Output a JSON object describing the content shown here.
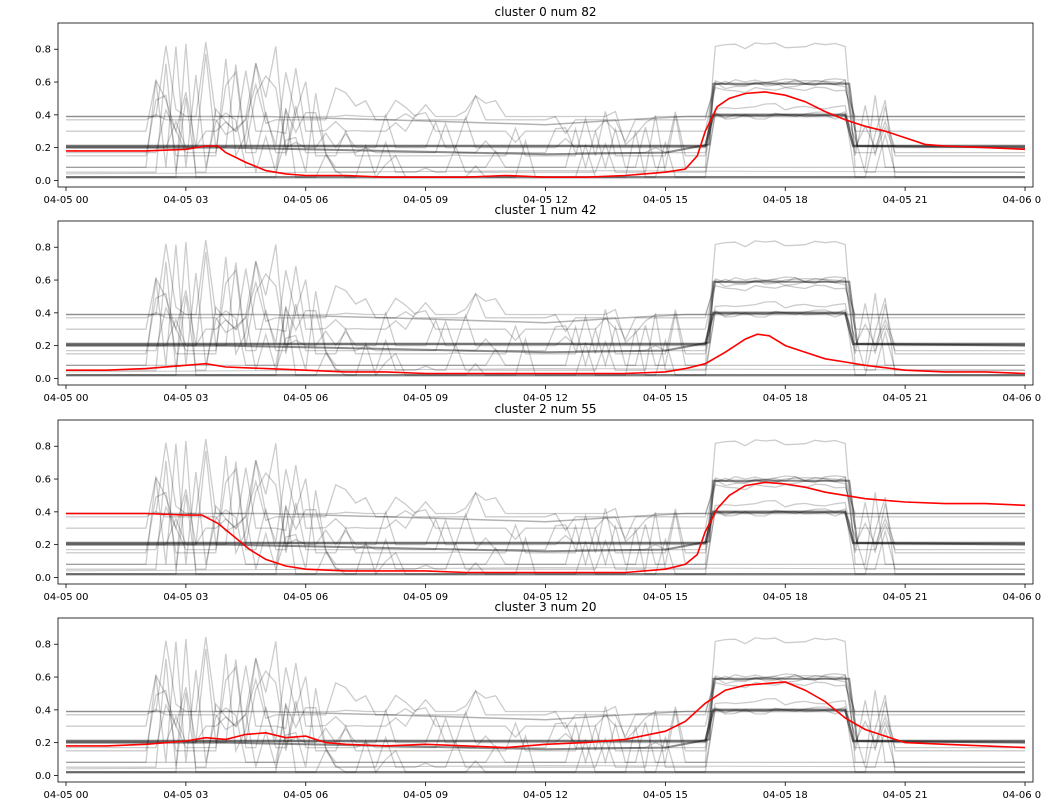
{
  "colors": {
    "background_lines": "#000000",
    "mean_line": "#ff0000",
    "axes": "#000000"
  },
  "chart_data": [
    {
      "type": "line",
      "title": "cluster 0 num 82",
      "xlabel": "",
      "ylabel": "",
      "xlim": [
        -0.2,
        24.2
      ],
      "ylim": [
        -0.04,
        0.96
      ],
      "x_ticks": [
        "04-05 00",
        "04-05 03",
        "04-05 06",
        "04-05 09",
        "04-05 12",
        "04-05 15",
        "04-05 18",
        "04-05 21",
        "04-06 00"
      ],
      "y_ticks": [
        "0.0",
        "0.2",
        "0.4",
        "0.6",
        "0.8"
      ],
      "grid": false,
      "series": [
        {
          "x": [
            0,
            1,
            2,
            3,
            3.5,
            3.8,
            4,
            4.5,
            5,
            5.5,
            6,
            7,
            8,
            9,
            10,
            11,
            12,
            13,
            14,
            15,
            15.5,
            15.8,
            16,
            16.3,
            16.6,
            17,
            17.5,
            18,
            18.5,
            19,
            19.5,
            20,
            20.5,
            21,
            21.5,
            22,
            23,
            24
          ],
          "values": [
            0.18,
            0.18,
            0.18,
            0.19,
            0.21,
            0.21,
            0.17,
            0.11,
            0.06,
            0.04,
            0.03,
            0.03,
            0.02,
            0.02,
            0.02,
            0.03,
            0.02,
            0.02,
            0.03,
            0.05,
            0.07,
            0.15,
            0.3,
            0.45,
            0.5,
            0.53,
            0.54,
            0.52,
            0.48,
            0.42,
            0.37,
            0.33,
            0.3,
            0.26,
            0.22,
            0.21,
            0.2,
            0.19
          ]
        }
      ]
    },
    {
      "type": "line",
      "title": "cluster 1 num 42",
      "xlabel": "",
      "ylabel": "",
      "xlim": [
        -0.2,
        24.2
      ],
      "ylim": [
        -0.04,
        0.96
      ],
      "x_ticks": [
        "04-05 00",
        "04-05 03",
        "04-05 06",
        "04-05 09",
        "04-05 12",
        "04-05 15",
        "04-05 18",
        "04-05 21",
        "04-06 00"
      ],
      "y_ticks": [
        "0.0",
        "0.2",
        "0.4",
        "0.6",
        "0.8"
      ],
      "grid": false,
      "series": [
        {
          "x": [
            0,
            1,
            2,
            3,
            3.5,
            4,
            5,
            6,
            7,
            8,
            9,
            10,
            11,
            12,
            13,
            14,
            15,
            15.5,
            16,
            16.5,
            17,
            17.3,
            17.6,
            18,
            18.5,
            19,
            19.5,
            20,
            21,
            22,
            23,
            24
          ],
          "values": [
            0.05,
            0.05,
            0.06,
            0.08,
            0.09,
            0.07,
            0.06,
            0.05,
            0.04,
            0.04,
            0.03,
            0.03,
            0.03,
            0.03,
            0.03,
            0.03,
            0.04,
            0.06,
            0.09,
            0.16,
            0.24,
            0.27,
            0.26,
            0.2,
            0.16,
            0.12,
            0.1,
            0.08,
            0.05,
            0.04,
            0.04,
            0.03
          ]
        }
      ]
    },
    {
      "type": "line",
      "title": "cluster 2 num 55",
      "xlabel": "",
      "ylabel": "",
      "xlim": [
        -0.2,
        24.2
      ],
      "ylim": [
        -0.04,
        0.96
      ],
      "x_ticks": [
        "04-05 00",
        "04-05 03",
        "04-05 06",
        "04-05 09",
        "04-05 12",
        "04-05 15",
        "04-05 18",
        "04-05 21",
        "04-06 00"
      ],
      "y_ticks": [
        "0.0",
        "0.2",
        "0.4",
        "0.6",
        "0.8"
      ],
      "grid": false,
      "series": [
        {
          "x": [
            0,
            1,
            2,
            3,
            3.4,
            3.8,
            4.2,
            4.6,
            5,
            5.5,
            6,
            7,
            8,
            9,
            10,
            11,
            12,
            13,
            14,
            15,
            15.5,
            15.8,
            16,
            16.3,
            16.6,
            17,
            17.5,
            18,
            18.5,
            19,
            19.5,
            20,
            21,
            22,
            23,
            24
          ],
          "values": [
            0.39,
            0.39,
            0.39,
            0.38,
            0.38,
            0.33,
            0.25,
            0.17,
            0.11,
            0.07,
            0.05,
            0.04,
            0.04,
            0.04,
            0.03,
            0.03,
            0.03,
            0.03,
            0.03,
            0.05,
            0.08,
            0.14,
            0.28,
            0.42,
            0.5,
            0.56,
            0.58,
            0.57,
            0.55,
            0.52,
            0.5,
            0.48,
            0.46,
            0.45,
            0.45,
            0.44
          ]
        }
      ]
    },
    {
      "type": "line",
      "title": "cluster 3 num 20",
      "xlabel": "",
      "ylabel": "",
      "xlim": [
        -0.2,
        24.2
      ],
      "ylim": [
        -0.04,
        0.96
      ],
      "x_ticks": [
        "04-05 00",
        "04-05 03",
        "04-05 06",
        "04-05 09",
        "04-05 12",
        "04-05 15",
        "04-05 18",
        "04-05 21",
        "04-06 00"
      ],
      "y_ticks": [
        "0.0",
        "0.2",
        "0.4",
        "0.6",
        "0.8"
      ],
      "grid": false,
      "series": [
        {
          "x": [
            0,
            1,
            2,
            3,
            3.5,
            4,
            4.5,
            5,
            5.5,
            6,
            6.5,
            7,
            8,
            9,
            10,
            11,
            12,
            13,
            14,
            15,
            15.5,
            16,
            16.5,
            17,
            17.5,
            18,
            18.5,
            19,
            19.5,
            20,
            20.5,
            21,
            22,
            23,
            24
          ],
          "values": [
            0.18,
            0.18,
            0.19,
            0.21,
            0.23,
            0.22,
            0.25,
            0.26,
            0.23,
            0.24,
            0.2,
            0.19,
            0.18,
            0.19,
            0.18,
            0.17,
            0.19,
            0.2,
            0.22,
            0.27,
            0.33,
            0.44,
            0.52,
            0.55,
            0.56,
            0.57,
            0.52,
            0.45,
            0.35,
            0.28,
            0.24,
            0.2,
            0.19,
            0.18,
            0.17
          ]
        }
      ]
    }
  ]
}
